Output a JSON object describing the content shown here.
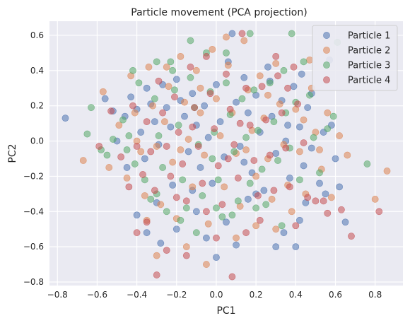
{
  "chart_data": {
    "type": "scatter",
    "title": "Particle movement (PCA projection)",
    "xlabel": "PC1",
    "ylabel": "PC2",
    "xlim": [
      -0.84,
      0.94
    ],
    "ylim": [
      -0.82,
      0.68
    ],
    "xticks": [
      -0.8,
      -0.6,
      -0.4,
      -0.2,
      0.0,
      0.2,
      0.4,
      0.6,
      0.8
    ],
    "yticks": [
      -0.8,
      -0.6,
      -0.4,
      -0.2,
      0.0,
      0.2,
      0.4,
      0.6
    ],
    "xtick_labels": [
      "−0.8",
      "−0.6",
      "−0.4",
      "−0.2",
      "0.0",
      "0.2",
      "0.4",
      "0.6",
      "0.8"
    ],
    "ytick_labels": [
      "−0.8",
      "−0.6",
      "−0.4",
      "−0.2",
      "0.0",
      "0.2",
      "0.4",
      "0.6"
    ],
    "grid": true,
    "background": "#eaeaf2",
    "legend_position": "top-right",
    "series": [
      {
        "name": "Particle 1",
        "color": "#4c72b0",
        "points": [
          [
            -0.76,
            0.13
          ],
          [
            -0.56,
            0.24
          ],
          [
            -0.52,
            0.17
          ],
          [
            -0.46,
            0.14
          ],
          [
            -0.43,
            0.25
          ],
          [
            -0.4,
            0.18
          ],
          [
            -0.38,
            0.05
          ],
          [
            -0.35,
            0.3
          ],
          [
            -0.33,
            0.21
          ],
          [
            -0.31,
            0.11
          ],
          [
            -0.29,
            -0.02
          ],
          [
            -0.27,
            0.32
          ],
          [
            -0.25,
            0.19
          ],
          [
            -0.23,
            0.08
          ],
          [
            -0.2,
            0.35
          ],
          [
            -0.18,
            0.23
          ],
          [
            -0.16,
            0.14
          ],
          [
            -0.14,
            -0.06
          ],
          [
            -0.12,
            0.27
          ],
          [
            -0.1,
            0.09
          ],
          [
            -0.08,
            -0.15
          ],
          [
            -0.06,
            0.2
          ],
          [
            -0.04,
            0.02
          ],
          [
            -0.02,
            -0.24
          ],
          [
            0.0,
            0.32
          ],
          [
            0.02,
            0.11
          ],
          [
            0.04,
            -0.09
          ],
          [
            0.06,
            0.45
          ],
          [
            0.08,
            0.61
          ],
          [
            0.1,
            0.22
          ],
          [
            0.12,
            -0.03
          ],
          [
            0.14,
            0.36
          ],
          [
            0.16,
            0.16
          ],
          [
            0.18,
            -0.18
          ],
          [
            0.2,
            0.26
          ],
          [
            0.22,
            0.05
          ],
          [
            0.24,
            -0.28
          ],
          [
            0.26,
            0.42
          ],
          [
            0.28,
            0.14
          ],
          [
            0.3,
            -0.07
          ],
          [
            0.33,
            0.23
          ],
          [
            0.35,
            0.0
          ],
          [
            0.37,
            -0.21
          ],
          [
            0.39,
            0.31
          ],
          [
            0.42,
            0.08
          ],
          [
            0.44,
            -0.14
          ],
          [
            0.46,
            0.19
          ],
          [
            0.48,
            -0.04
          ],
          [
            0.52,
            -0.24
          ],
          [
            0.54,
            0.05
          ],
          [
            0.58,
            0.09
          ],
          [
            0.62,
            -0.26
          ],
          [
            0.65,
            -0.46
          ],
          [
            0.57,
            0.46
          ],
          [
            0.43,
            0.38
          ],
          [
            -0.3,
            -0.35
          ],
          [
            -0.2,
            -0.5
          ],
          [
            -0.1,
            -0.4
          ],
          [
            0.05,
            -0.46
          ],
          [
            0.2,
            -0.3
          ],
          [
            0.3,
            -0.6
          ],
          [
            0.1,
            -0.59
          ],
          [
            -0.05,
            -0.55
          ],
          [
            -0.35,
            -0.52
          ],
          [
            -0.4,
            -0.42
          ],
          [
            0.45,
            -0.35
          ],
          [
            0.55,
            -0.3
          ],
          [
            0.34,
            -0.52
          ],
          [
            0.4,
            -0.6
          ],
          [
            -0.28,
            -0.58
          ],
          [
            -0.22,
            -0.25
          ],
          [
            -0.36,
            -0.1
          ],
          [
            0.0,
            -0.66
          ],
          [
            0.16,
            -0.33
          ],
          [
            0.27,
            0.34
          ],
          [
            -0.5,
            0.0
          ],
          [
            -0.45,
            -0.15
          ],
          [
            0.48,
            0.27
          ],
          [
            0.36,
            0.09
          ],
          [
            -0.12,
            -0.28
          ],
          [
            0.14,
            -0.12
          ],
          [
            0.42,
            -0.45
          ],
          [
            0.6,
            -0.1
          ]
        ]
      },
      {
        "name": "Particle 2",
        "color": "#dd8452",
        "points": [
          [
            -0.67,
            -0.11
          ],
          [
            -0.57,
            0.28
          ],
          [
            -0.54,
            -0.15
          ],
          [
            -0.49,
            0.09
          ],
          [
            -0.45,
            -0.21
          ],
          [
            -0.43,
            0.37
          ],
          [
            -0.41,
            0.16
          ],
          [
            -0.38,
            -0.06
          ],
          [
            -0.36,
            -0.31
          ],
          [
            -0.34,
            0.42
          ],
          [
            -0.32,
            0.2
          ],
          [
            -0.3,
            -0.03
          ],
          [
            -0.28,
            -0.36
          ],
          [
            -0.26,
            0.11
          ],
          [
            -0.24,
            0.31
          ],
          [
            -0.22,
            -0.12
          ],
          [
            -0.2,
            -0.44
          ],
          [
            -0.18,
            0.48
          ],
          [
            -0.16,
            0.22
          ],
          [
            -0.14,
            0.01
          ],
          [
            -0.12,
            -0.26
          ],
          [
            -0.1,
            0.4
          ],
          [
            -0.08,
            0.16
          ],
          [
            -0.06,
            -0.08
          ],
          [
            -0.04,
            -0.47
          ],
          [
            -0.02,
            0.52
          ],
          [
            0.0,
            0.24
          ],
          [
            0.02,
            0.03
          ],
          [
            0.04,
            -0.26
          ],
          [
            0.06,
            0.43
          ],
          [
            0.08,
            0.16
          ],
          [
            0.1,
            -0.07
          ],
          [
            0.12,
            -0.37
          ],
          [
            0.14,
            0.57
          ],
          [
            0.16,
            0.29
          ],
          [
            0.18,
            0.06
          ],
          [
            0.2,
            -0.2
          ],
          [
            0.22,
            0.37
          ],
          [
            0.24,
            0.13
          ],
          [
            0.26,
            -0.1
          ],
          [
            0.28,
            -0.33
          ],
          [
            0.3,
            0.44
          ],
          [
            0.32,
            0.21
          ],
          [
            0.34,
            -0.02
          ],
          [
            0.36,
            -0.25
          ],
          [
            0.4,
            0.18
          ],
          [
            0.42,
            -0.06
          ],
          [
            0.45,
            -0.3
          ],
          [
            0.47,
            0.46
          ],
          [
            0.5,
            0.05
          ],
          [
            0.53,
            -0.16
          ],
          [
            0.56,
            0.16
          ],
          [
            0.58,
            -0.32
          ],
          [
            0.62,
            0.03
          ],
          [
            0.66,
            -0.08
          ],
          [
            0.8,
            -0.33
          ],
          [
            0.86,
            -0.17
          ],
          [
            -0.25,
            0.42
          ],
          [
            0.05,
            0.59
          ],
          [
            -0.35,
            -0.45
          ],
          [
            -0.15,
            -0.6
          ],
          [
            0.2,
            -0.48
          ],
          [
            0.38,
            -0.4
          ],
          [
            0.3,
            -0.5
          ],
          [
            -0.05,
            -0.7
          ],
          [
            0.1,
            -0.55
          ],
          [
            -0.3,
            -0.65
          ],
          [
            -0.4,
            0.0
          ],
          [
            0.48,
            0.3
          ],
          [
            0.52,
            -0.05
          ],
          [
            0.44,
            0.12
          ],
          [
            -0.18,
            -0.05
          ],
          [
            0.15,
            -0.05
          ],
          [
            -0.08,
            0.3
          ],
          [
            0.26,
            0.26
          ]
        ]
      },
      {
        "name": "Particle 3",
        "color": "#55a868",
        "points": [
          [
            -0.65,
            0.04
          ],
          [
            -0.63,
            0.19
          ],
          [
            -0.58,
            -0.05
          ],
          [
            -0.52,
            0.01
          ],
          [
            -0.47,
            0.12
          ],
          [
            -0.44,
            0.03
          ],
          [
            -0.41,
            -0.13
          ],
          [
            -0.39,
            0.33
          ],
          [
            -0.36,
            -0.22
          ],
          [
            -0.33,
            -0.33
          ],
          [
            -0.31,
            0.24
          ],
          [
            -0.29,
            0.03
          ],
          [
            -0.27,
            -0.15
          ],
          [
            -0.25,
            -0.4
          ],
          [
            -0.23,
            0.45
          ],
          [
            -0.21,
            0.29
          ],
          [
            -0.19,
            0.09
          ],
          [
            -0.17,
            -0.22
          ],
          [
            -0.15,
            -0.38
          ],
          [
            -0.13,
            0.36
          ],
          [
            -0.11,
            0.19
          ],
          [
            -0.09,
            -0.02
          ],
          [
            -0.07,
            -0.31
          ],
          [
            -0.05,
            0.5
          ],
          [
            -0.03,
            0.28
          ],
          [
            -0.01,
            0.05
          ],
          [
            0.01,
            -0.22
          ],
          [
            0.03,
            -0.43
          ],
          [
            0.05,
            0.33
          ],
          [
            0.07,
            0.15
          ],
          [
            0.09,
            -0.06
          ],
          [
            0.11,
            -0.34
          ],
          [
            0.13,
            0.24
          ],
          [
            0.15,
            0.02
          ],
          [
            0.17,
            -0.24
          ],
          [
            0.19,
            0.29
          ],
          [
            0.21,
            0.06
          ],
          [
            0.23,
            -0.16
          ],
          [
            0.25,
            -0.36
          ],
          [
            0.27,
            0.33
          ],
          [
            0.29,
            0.11
          ],
          [
            0.31,
            -0.11
          ],
          [
            0.33,
            -0.48
          ],
          [
            0.35,
            0.16
          ],
          [
            0.37,
            -0.04
          ],
          [
            0.4,
            0.22
          ],
          [
            0.42,
            -0.22
          ],
          [
            0.44,
            0.45
          ],
          [
            0.47,
            0.26
          ],
          [
            0.49,
            0.02
          ],
          [
            0.52,
            -0.18
          ],
          [
            0.56,
            0.07
          ],
          [
            0.59,
            0.14
          ],
          [
            0.76,
            -0.13
          ],
          [
            0.61,
            0.56
          ],
          [
            0.38,
            0.61
          ],
          [
            0.17,
            0.61
          ],
          [
            -0.13,
            0.57
          ],
          [
            -0.3,
            0.45
          ],
          [
            -0.42,
            0.4
          ],
          [
            -0.55,
            -0.08
          ],
          [
            -0.3,
            -0.3
          ],
          [
            -0.1,
            -0.52
          ],
          [
            -0.18,
            -0.45
          ],
          [
            0.0,
            -0.38
          ],
          [
            0.2,
            -0.38
          ],
          [
            0.08,
            -0.42
          ],
          [
            -0.45,
            -0.05
          ],
          [
            0.05,
            0.5
          ],
          [
            -0.22,
            0.4
          ],
          [
            0.34,
            0.4
          ],
          [
            -0.02,
            -0.1
          ]
        ]
      },
      {
        "name": "Particle 4",
        "color": "#c44e52",
        "points": [
          [
            -0.59,
            -0.03
          ],
          [
            -0.53,
            0.17
          ],
          [
            -0.48,
            -0.09
          ],
          [
            -0.44,
            -0.26
          ],
          [
            -0.42,
            0.2
          ],
          [
            -0.4,
            -0.03
          ],
          [
            -0.37,
            -0.19
          ],
          [
            -0.35,
            0.11
          ],
          [
            -0.33,
            -0.06
          ],
          [
            -0.31,
            -0.28
          ],
          [
            -0.29,
            0.34
          ],
          [
            -0.27,
            0.16
          ],
          [
            -0.25,
            -0.03
          ],
          [
            -0.23,
            -0.2
          ],
          [
            -0.21,
            0.25
          ],
          [
            -0.19,
            0.05
          ],
          [
            -0.17,
            -0.13
          ],
          [
            -0.15,
            -0.34
          ],
          [
            -0.13,
            0.42
          ],
          [
            -0.11,
            0.19
          ],
          [
            -0.09,
            -0.03
          ],
          [
            -0.07,
            -0.24
          ],
          [
            -0.05,
            0.48
          ],
          [
            -0.03,
            0.27
          ],
          [
            -0.01,
            0.07
          ],
          [
            0.01,
            -0.14
          ],
          [
            0.03,
            -0.36
          ],
          [
            0.05,
            0.38
          ],
          [
            0.07,
            0.18
          ],
          [
            0.09,
            -0.02
          ],
          [
            0.11,
            -0.21
          ],
          [
            0.13,
            0.61
          ],
          [
            0.15,
            0.3
          ],
          [
            0.17,
            0.09
          ],
          [
            0.19,
            -0.11
          ],
          [
            0.21,
            -0.31
          ],
          [
            0.23,
            0.31
          ],
          [
            0.25,
            0.12
          ],
          [
            0.27,
            -0.08
          ],
          [
            0.29,
            -0.28
          ],
          [
            0.31,
            0.37
          ],
          [
            0.33,
            0.16
          ],
          [
            0.35,
            -0.04
          ],
          [
            0.37,
            -0.26
          ],
          [
            0.39,
            0.42
          ],
          [
            0.41,
            0.21
          ],
          [
            0.44,
            -0.01
          ],
          [
            0.46,
            -0.32
          ],
          [
            0.5,
            -0.34
          ],
          [
            0.54,
            -0.34
          ],
          [
            0.56,
            -0.41
          ],
          [
            0.63,
            -0.39
          ],
          [
            0.68,
            -0.54
          ],
          [
            0.82,
            -0.4
          ],
          [
            0.3,
            0.48
          ],
          [
            -0.4,
            -0.52
          ],
          [
            -0.35,
            -0.46
          ],
          [
            -0.25,
            -0.62
          ],
          [
            -0.3,
            -0.76
          ],
          [
            0.08,
            -0.77
          ],
          [
            0.0,
            -0.55
          ],
          [
            -0.15,
            -0.65
          ],
          [
            -0.05,
            -0.4
          ],
          [
            0.15,
            -0.52
          ],
          [
            0.22,
            -0.45
          ],
          [
            -0.2,
            -0.32
          ],
          [
            0.4,
            -0.48
          ],
          [
            0.12,
            0.1
          ],
          [
            0.36,
            0.3
          ],
          [
            -0.12,
            0.08
          ],
          [
            0.06,
            -0.1
          ]
        ]
      }
    ]
  }
}
